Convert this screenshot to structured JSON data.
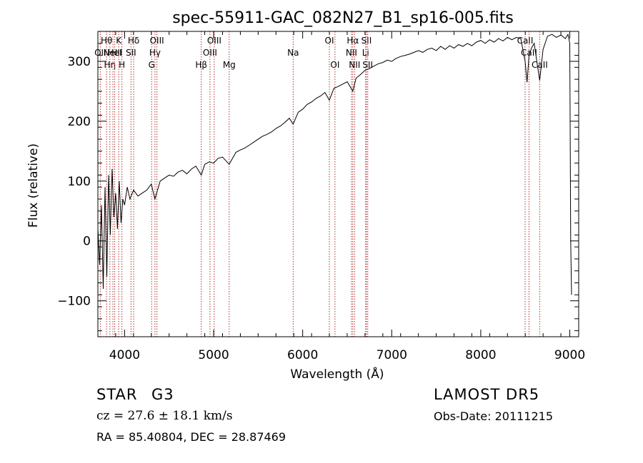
{
  "colors": {
    "axis": "#000000",
    "spectrum": "#000000",
    "line_marker": "#b03030",
    "background": "#ffffff"
  },
  "info": {
    "object_type": "STAR",
    "subclass": "G3",
    "survey": "LAMOST DR5",
    "redshift": "cz = 27.6 ± 18.1 km/s",
    "obs_date": "Obs-Date: 20111215",
    "coords": "RA =  85.40804, DEC =  28.87469"
  },
  "chart_data": {
    "type": "line",
    "title": "spec-55911-GAC_082N27_B1_sp16-005.fits",
    "xlabel": "Wavelength (Å)",
    "ylabel": "Flux (relative)",
    "xlim": [
      3700,
      9100
    ],
    "ylim": [
      -160,
      350
    ],
    "x_ticks": [
      4000,
      5000,
      6000,
      7000,
      8000,
      9000
    ],
    "y_ticks": [
      -100,
      0,
      100,
      200,
      300
    ],
    "grid": false,
    "series": [
      {
        "x": [
          3700,
          3720,
          3740,
          3760,
          3780,
          3800,
          3820,
          3840,
          3860,
          3880,
          3900,
          3920,
          3940,
          3960,
          3980,
          4000,
          4030,
          4060,
          4100,
          4150,
          4200,
          4250,
          4300,
          4340,
          4400,
          4450,
          4500,
          4550,
          4600,
          4650,
          4700,
          4750,
          4800,
          4861,
          4900,
          4950,
          5000,
          5050,
          5100,
          5175,
          5250,
          5300,
          5350,
          5400,
          5450,
          5500,
          5550,
          5600,
          5650,
          5700,
          5750,
          5800,
          5850,
          5893,
          5950,
          6000,
          6050,
          6100,
          6150,
          6200,
          6250,
          6300,
          6350,
          6400,
          6450,
          6500,
          6563,
          6600,
          6650,
          6700,
          6750,
          6800,
          6850,
          6900,
          6950,
          7000,
          7050,
          7100,
          7150,
          7200,
          7250,
          7300,
          7350,
          7400,
          7450,
          7500,
          7550,
          7600,
          7650,
          7700,
          7750,
          7800,
          7850,
          7900,
          7950,
          8000,
          8050,
          8100,
          8150,
          8200,
          8250,
          8300,
          8350,
          8400,
          8450,
          8498,
          8520,
          8542,
          8570,
          8600,
          8630,
          8662,
          8700,
          8750,
          8800,
          8850,
          8900,
          8950,
          8980,
          9000,
          9010,
          9020
        ],
        "y": [
          20,
          -40,
          60,
          -80,
          90,
          -60,
          110,
          10,
          120,
          40,
          80,
          20,
          100,
          30,
          70,
          60,
          90,
          70,
          85,
          75,
          80,
          85,
          95,
          70,
          100,
          105,
          110,
          108,
          115,
          118,
          112,
          120,
          125,
          110,
          128,
          132,
          130,
          138,
          140,
          128,
          148,
          152,
          155,
          160,
          165,
          170,
          175,
          178,
          182,
          188,
          192,
          198,
          205,
          195,
          215,
          220,
          228,
          232,
          238,
          242,
          248,
          235,
          255,
          258,
          262,
          266,
          250,
          272,
          278,
          285,
          288,
          292,
          296,
          298,
          302,
          300,
          305,
          308,
          310,
          312,
          315,
          318,
          315,
          320,
          322,
          318,
          325,
          320,
          326,
          322,
          328,
          325,
          330,
          326,
          332,
          335,
          330,
          336,
          332,
          338,
          334,
          340,
          336,
          340,
          338,
          300,
          265,
          310,
          322,
          330,
          300,
          268,
          320,
          342,
          345,
          340,
          344,
          338,
          345,
          330,
          0,
          -90
        ]
      }
    ],
    "line_markers": [
      {
        "wavelength": 3727,
        "label": "OII",
        "row": 2
      },
      {
        "wavelength": 3798,
        "label": "Hθ",
        "row": 1
      },
      {
        "wavelength": 3835,
        "label": "Hη",
        "row": 3
      },
      {
        "wavelength": 3869,
        "label": "NeIII",
        "row": 2
      },
      {
        "wavelength": 3889,
        "label": "HeI",
        "row": 2
      },
      {
        "wavelength": 3934,
        "label": "K",
        "row": 1
      },
      {
        "wavelength": 3970,
        "label": "H",
        "row": 3
      },
      {
        "wavelength": 4072,
        "label": "SII",
        "row": 2
      },
      {
        "wavelength": 4102,
        "label": "Hδ",
        "row": 1
      },
      {
        "wavelength": 4304,
        "label": "G",
        "row": 3
      },
      {
        "wavelength": 4341,
        "label": "Hγ",
        "row": 2
      },
      {
        "wavelength": 4363,
        "label": "OIII",
        "row": 1
      },
      {
        "wavelength": 4861,
        "label": "Hβ",
        "row": 3
      },
      {
        "wavelength": 4959,
        "label": "OIII",
        "row": 2
      },
      {
        "wavelength": 5007,
        "label": "OIII",
        "row": 1
      },
      {
        "wavelength": 5175,
        "label": "Mg",
        "row": 3
      },
      {
        "wavelength": 5893,
        "label": "Na",
        "row": 2
      },
      {
        "wavelength": 6300,
        "label": "OI",
        "row": 1
      },
      {
        "wavelength": 6363,
        "label": "OI",
        "row": 3
      },
      {
        "wavelength": 6548,
        "label": "NII",
        "row": 2
      },
      {
        "wavelength": 6563,
        "label": "Hα",
        "row": 1
      },
      {
        "wavelength": 6583,
        "label": "NII",
        "row": 3
      },
      {
        "wavelength": 6707,
        "label": "Li",
        "row": 2
      },
      {
        "wavelength": 6716,
        "label": "SII",
        "row": 1
      },
      {
        "wavelength": 6731,
        "label": "SII",
        "row": 3
      },
      {
        "wavelength": 8498,
        "label": "CaII",
        "row": 1
      },
      {
        "wavelength": 8542,
        "label": "CaII",
        "row": 2
      },
      {
        "wavelength": 8662,
        "label": "CaII",
        "row": 3
      }
    ]
  }
}
